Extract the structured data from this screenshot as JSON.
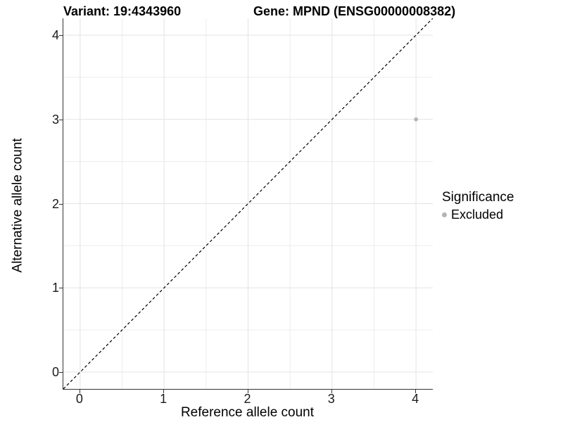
{
  "titles": {
    "variant": "Variant: 19:4343960",
    "gene": "Gene: MPND (ENSG00000008382)"
  },
  "chart_data": {
    "type": "scatter",
    "title_left": "Variant: 19:4343960",
    "title_right": "Gene: MPND (ENSG00000008382)",
    "xlabel": "Reference allele count",
    "ylabel": "Alternative allele count",
    "xlim": [
      -0.2,
      4.2
    ],
    "ylim": [
      -0.2,
      4.2
    ],
    "xticks": [
      0,
      1,
      2,
      3,
      4
    ],
    "yticks": [
      0,
      1,
      2,
      3,
      4
    ],
    "xticks_minor": [
      0.5,
      1.5,
      2.5,
      3.5
    ],
    "yticks_minor": [
      0.5,
      1.5,
      2.5,
      3.5
    ],
    "grid": true,
    "series": [
      {
        "name": "Excluded",
        "color": "#b4b4b4",
        "points": [
          {
            "x": 4,
            "y": 3
          }
        ]
      }
    ],
    "identity_line": {
      "from": [
        -0.2,
        -0.2
      ],
      "to": [
        4.2,
        4.2
      ],
      "style": "dashed",
      "color": "#000000"
    },
    "legend": {
      "position": "right",
      "title": "Significance",
      "items": [
        {
          "label": "Excluded",
          "color": "#b4b4b4"
        }
      ]
    },
    "colors": {
      "grid_major": "#e3e3e3",
      "grid_minor": "#ededed",
      "axis_line": "#333333",
      "point": "#b4b4b4"
    }
  }
}
